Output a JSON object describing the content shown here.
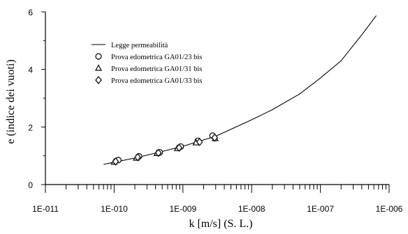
{
  "chart_data": {
    "type": "scatter",
    "xlabel": "k [m/s] (S. L.)",
    "ylabel": "e (indice dei vuoti)",
    "xscale": "log",
    "xlim": [
      1e-11,
      1e-06
    ],
    "ylim": [
      0,
      6
    ],
    "x_tick_labels": [
      "1E-011",
      "1E-010",
      "1E-009",
      "1E-008",
      "1E-007",
      "1E-006"
    ],
    "y_tick_labels": [
      "0",
      "2",
      "4",
      "6"
    ],
    "legend_position": "top-left",
    "series": [
      {
        "name": "Legge permeabilità",
        "kind": "line",
        "marker": "none",
        "points": [
          [
            7e-11,
            0.7
          ],
          [
            1e-10,
            0.78
          ],
          [
            2e-10,
            0.92
          ],
          [
            5e-10,
            1.15
          ],
          [
            1e-09,
            1.33
          ],
          [
            2e-09,
            1.55
          ],
          [
            3e-09,
            1.68
          ],
          [
            5e-09,
            1.92
          ],
          [
            1e-08,
            2.25
          ],
          [
            2e-08,
            2.6
          ],
          [
            5e-08,
            3.15
          ],
          [
            1e-07,
            3.7
          ],
          [
            2e-07,
            4.3
          ],
          [
            4e-07,
            5.2
          ],
          [
            6.5e-07,
            5.87
          ]
        ]
      },
      {
        "name": "Prova edometrica GA01/23 bis",
        "kind": "scatter",
        "marker": "circle",
        "points": [
          [
            1.15e-10,
            0.85
          ],
          [
            2.3e-10,
            0.98
          ],
          [
            4.6e-10,
            1.12
          ],
          [
            9.3e-10,
            1.32
          ],
          [
            1.65e-09,
            1.52
          ],
          [
            2.7e-09,
            1.7
          ]
        ]
      },
      {
        "name": "Prova edometrica GA01/31 bis",
        "kind": "scatter",
        "marker": "triangle",
        "points": [
          [
            1e-10,
            0.78
          ],
          [
            2.1e-10,
            0.92
          ],
          [
            4.2e-10,
            1.08
          ],
          [
            8.3e-10,
            1.25
          ],
          [
            1.55e-09,
            1.45
          ],
          [
            2.95e-09,
            1.6
          ]
        ]
      },
      {
        "name": "Prova edometrica GA01/33 bis",
        "kind": "scatter",
        "marker": "diamond",
        "points": [
          [
            1.05e-10,
            0.8
          ],
          [
            2.2e-10,
            0.95
          ],
          [
            4.4e-10,
            1.1
          ],
          [
            8.8e-10,
            1.28
          ],
          [
            1.75e-09,
            1.48
          ],
          [
            2.9e-09,
            1.63
          ]
        ]
      }
    ]
  }
}
